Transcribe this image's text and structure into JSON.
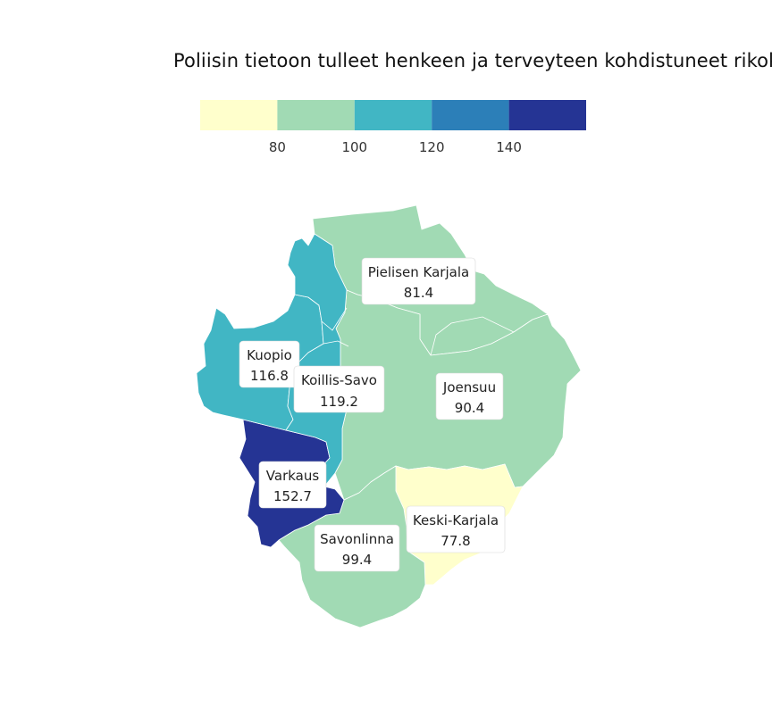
{
  "title": "Poliisin tietoon tulleet henkeen ja terveyteen kohdistuneet rikokset",
  "legend": {
    "bins": [
      {
        "color": "#ffffcc"
      },
      {
        "color": "#a1dab4"
      },
      {
        "color": "#41b6c4"
      },
      {
        "color": "#2c7fb8"
      },
      {
        "color": "#253494"
      }
    ],
    "ticks": [
      "80",
      "100",
      "120",
      "140"
    ]
  },
  "regions": [
    {
      "id": "pielisen-karjala",
      "name": "Pielisen Karjala",
      "value": "81.4",
      "color": "#a1dab4"
    },
    {
      "id": "joensuu",
      "name": "Joensuu",
      "value": "90.4",
      "color": "#a1dab4"
    },
    {
      "id": "keski-karjala",
      "name": "Keski-Karjala",
      "value": "77.8",
      "color": "#ffffcc"
    },
    {
      "id": "savonlinna",
      "name": "Savonlinna",
      "value": "99.4",
      "color": "#a1dab4"
    },
    {
      "id": "varkaus",
      "name": "Varkaus",
      "value": "152.7",
      "color": "#253494"
    },
    {
      "id": "kuopio",
      "name": "Kuopio",
      "value": "116.8",
      "color": "#41b6c4"
    },
    {
      "id": "koillis-savo",
      "name": "Koillis-Savo",
      "value": "119.2",
      "color": "#41b6c4"
    }
  ]
}
